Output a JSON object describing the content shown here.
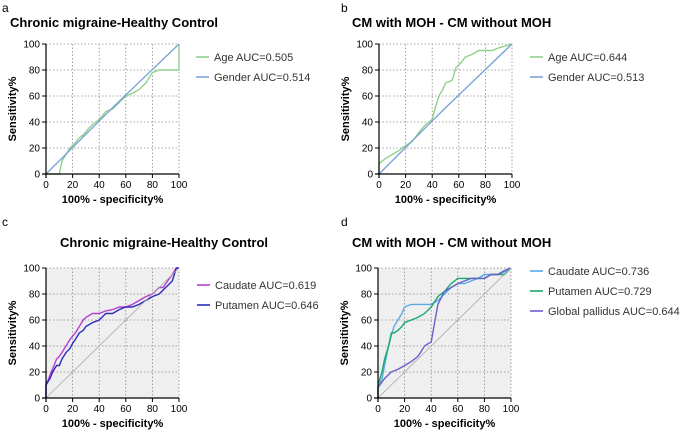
{
  "chart_data": [
    {
      "panel": "a",
      "type": "line",
      "title": "Chronic  migraine-Healthy Control",
      "xlabel": "100% - specificity%",
      "ylabel": "Sensitivity%",
      "xlim": [
        0,
        100
      ],
      "ylim": [
        0,
        100
      ],
      "xticks": [
        0,
        20,
        40,
        60,
        80,
        100
      ],
      "yticks": [
        0,
        20,
        40,
        60,
        80,
        100
      ],
      "shaded_background": false,
      "grid": "dotted",
      "legend": "top-right",
      "series": [
        {
          "name": "Age AUC=0.505",
          "color": "#8fd18b",
          "x": [
            0,
            10,
            12,
            15,
            18,
            22,
            25,
            28,
            32,
            35,
            40,
            45,
            50,
            55,
            60,
            65,
            70,
            75,
            80,
            85,
            90,
            100,
            100
          ],
          "y": [
            0,
            0,
            10,
            15,
            20,
            24,
            28,
            30,
            35,
            38,
            42,
            48,
            50,
            55,
            60,
            62,
            65,
            70,
            78,
            80,
            80,
            80,
            100
          ]
        },
        {
          "name": "Gender AUC=0.514",
          "color": "#7ea4d6",
          "x": [
            0,
            50,
            100
          ],
          "y": [
            0,
            51,
            100
          ]
        }
      ]
    },
    {
      "panel": "b",
      "type": "line",
      "title": "CM with MOH - CM without MOH",
      "xlabel": "100% - specificity%",
      "ylabel": "Sensitivity%",
      "xlim": [
        0,
        100
      ],
      "ylim": [
        0,
        100
      ],
      "xticks": [
        0,
        20,
        40,
        60,
        80,
        100
      ],
      "yticks": [
        0,
        20,
        40,
        60,
        80,
        100
      ],
      "shaded_background": false,
      "grid": "dotted",
      "legend": "top-right",
      "series": [
        {
          "name": "Age AUC=0.644",
          "color": "#8fd18b",
          "x": [
            0,
            0,
            5,
            10,
            15,
            20,
            25,
            30,
            35,
            40,
            42,
            45,
            48,
            50,
            55,
            58,
            62,
            65,
            70,
            75,
            80,
            85,
            90,
            100
          ],
          "y": [
            0,
            8,
            12,
            15,
            18,
            22,
            25,
            32,
            38,
            42,
            50,
            60,
            65,
            70,
            72,
            82,
            86,
            90,
            92,
            95,
            95,
            95,
            97,
            100
          ]
        },
        {
          "name": "Gender AUC=0.513",
          "color": "#7ea4d6",
          "x": [
            0,
            50,
            100
          ],
          "y": [
            0,
            51,
            100
          ]
        }
      ]
    },
    {
      "panel": "c",
      "type": "line",
      "title": "Chronic  migraine-Healthy Control",
      "xlabel": "100% - specificity%",
      "ylabel": "Sensitivity%",
      "xlim": [
        0,
        100
      ],
      "ylim": [
        0,
        100
      ],
      "xticks": [
        0,
        20,
        40,
        60,
        80,
        100
      ],
      "yticks": [
        0,
        20,
        40,
        60,
        80,
        100
      ],
      "shaded_background": true,
      "grid": "dotted",
      "legend": "top-right",
      "series": [
        {
          "name": "Caudate AUC=0.619",
          "color": "#b43fd1",
          "x": [
            0,
            0,
            2,
            4,
            6,
            8,
            10,
            12,
            15,
            18,
            22,
            25,
            28,
            30,
            35,
            40,
            45,
            50,
            55,
            60,
            65,
            70,
            75,
            80,
            85,
            88,
            90,
            95,
            98,
            100
          ],
          "y": [
            0,
            10,
            15,
            20,
            25,
            30,
            32,
            35,
            40,
            45,
            50,
            55,
            60,
            62,
            65,
            65,
            67,
            68,
            70,
            70,
            72,
            75,
            78,
            80,
            85,
            85,
            88,
            95,
            100,
            100
          ]
        },
        {
          "name": "Putamen AUC=0.646",
          "color": "#2b2bbf",
          "x": [
            0,
            0,
            3,
            5,
            8,
            10,
            12,
            15,
            18,
            20,
            22,
            25,
            28,
            30,
            35,
            40,
            42,
            45,
            50,
            55,
            60,
            65,
            70,
            75,
            80,
            85,
            90,
            95,
            98,
            100
          ],
          "y": [
            0,
            10,
            15,
            20,
            25,
            25,
            30,
            35,
            38,
            42,
            45,
            50,
            52,
            55,
            58,
            60,
            62,
            65,
            65,
            68,
            70,
            70,
            72,
            75,
            78,
            80,
            85,
            90,
            100,
            100
          ]
        },
        {
          "name": "",
          "color": "#aaaaaa",
          "x": [
            0,
            100
          ],
          "y": [
            0,
            100
          ]
        }
      ]
    },
    {
      "panel": "d",
      "type": "line",
      "title": "CM with MOH - CM without MOH",
      "xlabel": "100% - specificity%",
      "ylabel": "Sensitivity%",
      "xlim": [
        0,
        100
      ],
      "ylim": [
        0,
        100
      ],
      "xticks": [
        0,
        20,
        40,
        60,
        80,
        100
      ],
      "yticks": [
        0,
        20,
        40,
        60,
        80,
        100
      ],
      "shaded_background": true,
      "grid": "dotted",
      "legend": "top-right",
      "series": [
        {
          "name": "Caudate AUC=0.736",
          "color": "#5aa9e6",
          "x": [
            0,
            0,
            3,
            5,
            8,
            10,
            12,
            15,
            18,
            20,
            25,
            30,
            35,
            40,
            45,
            50,
            55,
            60,
            65,
            70,
            75,
            80,
            85,
            90,
            95,
            100
          ],
          "y": [
            0,
            8,
            15,
            25,
            40,
            48,
            55,
            60,
            65,
            70,
            72,
            72,
            72,
            72,
            75,
            80,
            85,
            88,
            88,
            90,
            92,
            95,
            95,
            95,
            97,
            100
          ]
        },
        {
          "name": "Putamen AUC=0.729",
          "color": "#17a86b",
          "x": [
            0,
            0,
            3,
            5,
            8,
            10,
            12,
            15,
            18,
            20,
            25,
            30,
            35,
            40,
            45,
            50,
            55,
            60,
            65,
            70,
            75,
            80,
            85,
            90,
            95,
            100
          ],
          "y": [
            0,
            10,
            20,
            30,
            40,
            50,
            50,
            52,
            55,
            58,
            60,
            62,
            65,
            70,
            78,
            82,
            88,
            92,
            92,
            92,
            92,
            92,
            95,
            95,
            95,
            100
          ]
        },
        {
          "name": "Global pallidus AUC=0.644",
          "color": "#6a5fcf",
          "x": [
            0,
            0,
            5,
            10,
            15,
            20,
            25,
            30,
            35,
            38,
            40,
            42,
            45,
            48,
            50,
            55,
            60,
            65,
            70,
            75,
            80,
            85,
            90,
            95,
            100
          ],
          "y": [
            0,
            8,
            15,
            20,
            22,
            25,
            28,
            32,
            40,
            42,
            43,
            55,
            72,
            78,
            82,
            85,
            88,
            90,
            92,
            92,
            92,
            95,
            95,
            98,
            100
          ]
        },
        {
          "name": "",
          "color": "#aaaaaa",
          "x": [
            0,
            100
          ],
          "y": [
            0,
            100
          ]
        }
      ]
    }
  ]
}
